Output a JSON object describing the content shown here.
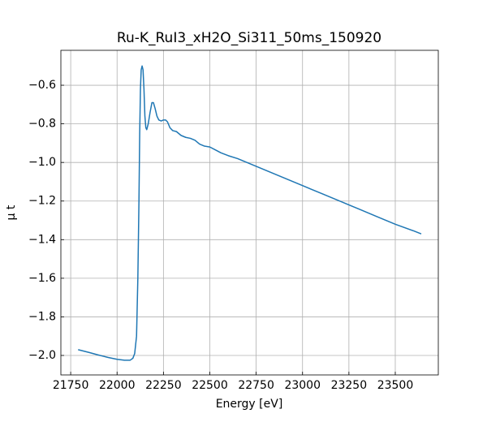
{
  "chart_data": {
    "type": "line",
    "title": "Ru-K_RuI3_xH2O_Si311_50ms_150920",
    "xlabel": "Energy [eV]",
    "ylabel": "μ t",
    "color": "#1f77b4",
    "grid": true,
    "x": [
      21790,
      21850,
      21900,
      21950,
      22000,
      22040,
      22070,
      22085,
      22095,
      22105,
      22112,
      22118,
      22122,
      22126,
      22130,
      22135,
      22140,
      22145,
      22150,
      22155,
      22160,
      22168,
      22178,
      22188,
      22196,
      22205,
      22215,
      22225,
      22238,
      22250,
      22262,
      22272,
      22285,
      22300,
      22320,
      22345,
      22370,
      22395,
      22420,
      22445,
      22470,
      22500,
      22530,
      22560,
      22600,
      22650,
      22700,
      22800,
      22900,
      23000,
      23100,
      23200,
      23300,
      23400,
      23500,
      23600,
      23640
    ],
    "values": [
      -1.97,
      -1.985,
      -1.998,
      -2.01,
      -2.02,
      -2.025,
      -2.025,
      -2.015,
      -1.99,
      -1.9,
      -1.6,
      -1.2,
      -0.85,
      -0.62,
      -0.52,
      -0.5,
      -0.52,
      -0.62,
      -0.76,
      -0.82,
      -0.83,
      -0.8,
      -0.74,
      -0.69,
      -0.69,
      -0.72,
      -0.76,
      -0.78,
      -0.785,
      -0.78,
      -0.78,
      -0.79,
      -0.82,
      -0.835,
      -0.84,
      -0.86,
      -0.87,
      -0.875,
      -0.885,
      -0.905,
      -0.915,
      -0.92,
      -0.935,
      -0.95,
      -0.965,
      -0.98,
      -1.0,
      -1.04,
      -1.08,
      -1.12,
      -1.16,
      -1.2,
      -1.24,
      -1.28,
      -1.32,
      -1.355,
      -1.37
    ],
    "xlim": [
      21697,
      23732
    ],
    "xticks": [
      21750,
      22000,
      22250,
      22500,
      22750,
      23000,
      23250,
      23500
    ],
    "ylim": [
      -2.101,
      -0.419
    ],
    "yticks": [
      {
        "value": -2.0,
        "label": "−2.0"
      },
      {
        "value": -1.8,
        "label": "−1.8"
      },
      {
        "value": -1.6,
        "label": "−1.6"
      },
      {
        "value": -1.4,
        "label": "−1.4"
      },
      {
        "value": -1.2,
        "label": "−1.2"
      },
      {
        "value": -1.0,
        "label": "−1.0"
      },
      {
        "value": -0.8,
        "label": "−0.8"
      },
      {
        "value": -0.6,
        "label": "−0.6"
      }
    ]
  }
}
